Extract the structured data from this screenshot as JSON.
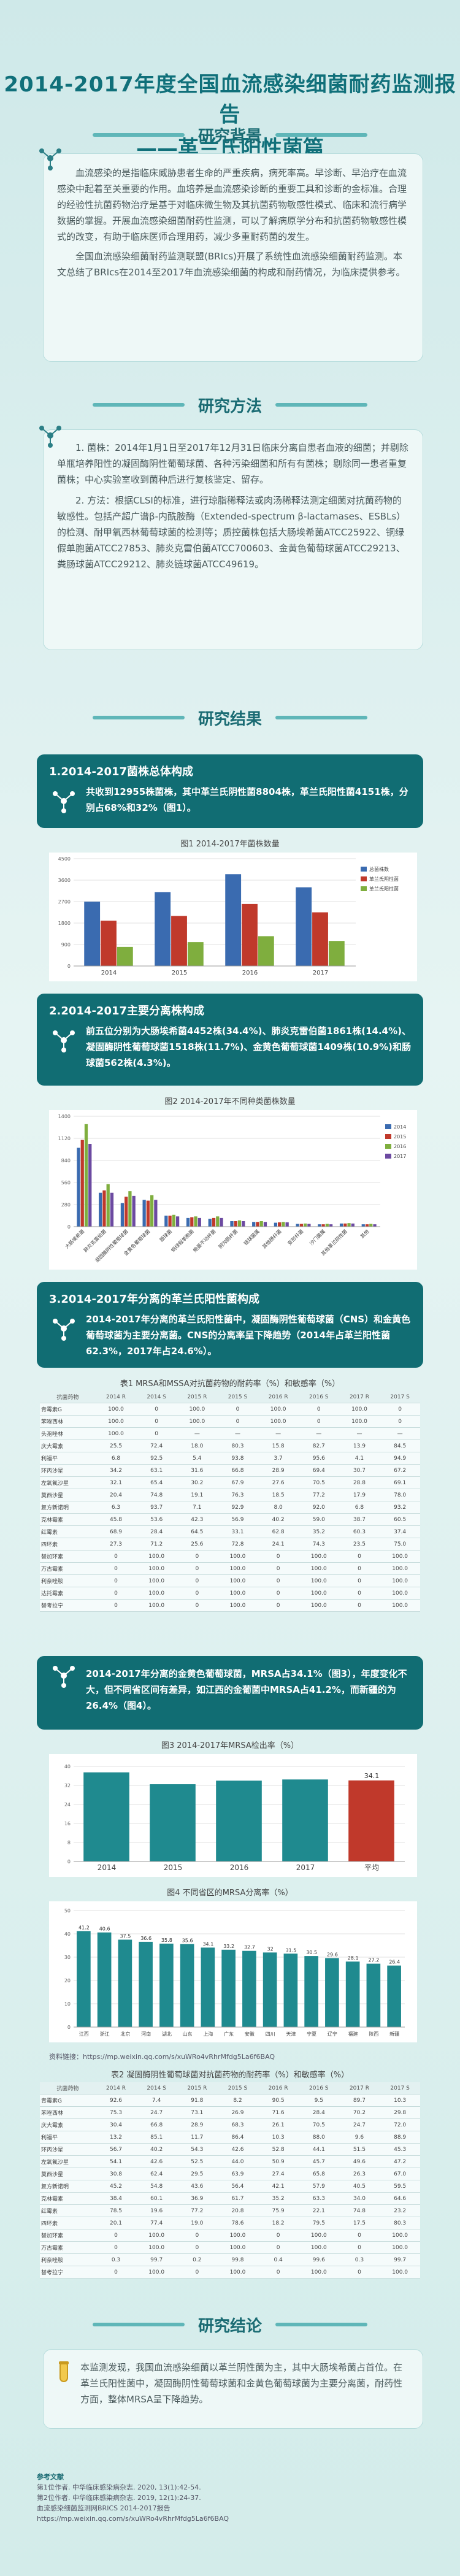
{
  "title": {
    "line1": "2014-2017年度全国血流感染细菌耐药监测报告",
    "line2": "——革兰氏阳性菌篇"
  },
  "sections": {
    "background": "研究背景",
    "methods": "研究方法",
    "results": "研究结果",
    "conclusion": "研究结论"
  },
  "background": {
    "p1": "血流感染的是指临床威胁患者生命的严重疾病，病死率高。早诊断、早治疗在血流感染中起着至关重要的作用。血培养是血流感染诊断的重要工具和诊断的金标准。合理的经验性抗菌药物治疗是基于对临床微生物及其抗菌药物敏感性模式、临床和流行病学数据的掌握。开展血流感染细菌耐药性监测，可以了解病原学分布和抗菌药物敏感性模式的改变，有助于临床医师合理用药，减少多重耐药菌的发生。",
    "p2": "全国血流感染细菌耐药监测联盟(BRIcs)开展了系统性血流感染细菌耐药监测。本文总结了BRIcs在2014至2017年血流感染细菌的构成和耐药情况，为临床提供参考。"
  },
  "methods": {
    "p1": "1. 菌株：2014年1月1日至2017年12月31日临床分离自患者血液的细菌；并剔除单瓶培养阳性的凝固酶阴性葡萄球菌、各种污染细菌和所有有菌株；剔除同一患者重复菌株；中心实验室收到菌种后进行复核鉴定、留存。",
    "p2": "2. 方法：根据CLSI的标准，进行琼脂稀释法或肉汤稀释法测定细菌对抗菌药物的敏感性。包括产超广谱β-内酰胺酶（Extended-spectrum β-lactamases、ESBLs）的检测、耐甲氧西林葡萄球菌的检测等；质控菌株包括大肠埃希菌ATCC25922、铜绿假单胞菌ATCC27853、肺炎克雷伯菌ATCC700603、金黄色葡萄球菌ATCC29213、粪肠球菌ATCC29212、肺炎链球菌ATCC49619。"
  },
  "result1": {
    "title": "1.2014-2017菌株总体构成",
    "body": "共收到12955株菌株，其中革兰氏阴性菌8804株，革兰氏阳性菌4151株，分别占68%和32%（图1）。"
  },
  "fig1": {
    "title": "图1 2014-2017年菌株数量",
    "chart_data": {
      "type": "bar",
      "categories": [
        "2014",
        "2015",
        "2016",
        "2017"
      ],
      "series": [
        {
          "name": "总菌株数",
          "values": [
            2700,
            3100,
            3850,
            3300
          ],
          "color": "#3a6bb0"
        },
        {
          "name": "革兰氏阴性菌",
          "values": [
            1900,
            2100,
            2600,
            2250
          ],
          "color": "#c0392b"
        },
        {
          "name": "革兰氏阳性菌",
          "values": [
            800,
            1000,
            1250,
            1050
          ],
          "color": "#7fae3e"
        }
      ],
      "ylim": [
        0,
        4500
      ]
    }
  },
  "result2": {
    "title": "2.2014-2017主要分离株构成",
    "body": "前五位分别为大肠埃希菌4452株(34.4%)、肺炎克雷伯菌1861株(14.4%)、凝固酶阴性葡萄球菌1518株(11.7%)、金黄色葡萄球菌1409株(10.9%)和肠球菌562株(4.3%)。"
  },
  "fig2": {
    "title": "图2 2014-2017年不同种类菌株数量",
    "chart_data": {
      "type": "bar",
      "categories": [
        "大肠埃希菌",
        "肺炎克雷伯菌",
        "凝固酶阴性葡萄球菌",
        "金黄色葡萄球菌",
        "肠球菌",
        "铜绿假单胞菌",
        "鲍曼不动杆菌",
        "阴沟肠杆菌",
        "链球菌属",
        "其他肠杆菌",
        "变形杆菌",
        "沙门菌属",
        "其他革兰阴性菌",
        "其他"
      ],
      "series": [
        {
          "name": "2014",
          "values": [
            1000,
            430,
            300,
            340,
            140,
            110,
            100,
            70,
            60,
            50,
            35,
            30,
            40,
            30
          ],
          "color": "#3a6bb0"
        },
        {
          "name": "2015",
          "values": [
            1100,
            460,
            380,
            330,
            140,
            120,
            110,
            70,
            60,
            55,
            35,
            30,
            40,
            30
          ],
          "color": "#c0392b"
        },
        {
          "name": "2016",
          "values": [
            1300,
            540,
            450,
            400,
            150,
            130,
            130,
            80,
            70,
            60,
            40,
            35,
            45,
            35
          ],
          "color": "#7fae3e"
        },
        {
          "name": "2017",
          "values": [
            1050,
            430,
            390,
            340,
            130,
            110,
            110,
            70,
            60,
            55,
            35,
            30,
            40,
            30
          ],
          "color": "#6c4aa1"
        }
      ],
      "ylim": [
        0,
        1400
      ]
    }
  },
  "result3": {
    "title": "3.2014-2017年分离的革兰氏阳性菌构成",
    "body": "2014-2017年分离的革兰氏阳性菌中，凝固酶阴性葡萄球菌（CNS）和金黄色葡萄球菌为主要分离菌。CNS的分离率呈下降趋势（2014年占革兰阳性菌62.3%，2017年占24.6%）。"
  },
  "table1": {
    "title": "表1 MRSA和MSSA对抗菌药物的耐药率（%）和敏感率（%）",
    "headers": [
      "抗菌药物",
      "2014 R",
      "2014 S",
      "2015 R",
      "2015 S",
      "2016 R",
      "2016 S",
      "2017 R",
      "2017 S"
    ],
    "rows": [
      [
        "青霉素G",
        "100.0",
        "0",
        "100.0",
        "0",
        "100.0",
        "0",
        "100.0",
        "0"
      ],
      [
        "苯唑西林",
        "100.0",
        "0",
        "100.0",
        "0",
        "100.0",
        "0",
        "100.0",
        "0"
      ],
      [
        "头孢唑林",
        "100.0",
        "0",
        "—",
        "—",
        "—",
        "—",
        "—",
        "—"
      ],
      [
        "庆大霉素",
        "25.5",
        "72.4",
        "18.0",
        "80.3",
        "15.8",
        "82.7",
        "13.9",
        "84.5"
      ],
      [
        "利福平",
        "6.8",
        "92.5",
        "5.4",
        "93.8",
        "3.7",
        "95.6",
        "4.1",
        "94.9"
      ],
      [
        "环丙沙星",
        "34.2",
        "63.1",
        "31.6",
        "66.8",
        "28.9",
        "69.4",
        "30.7",
        "67.2"
      ],
      [
        "左氧氟沙星",
        "32.1",
        "65.4",
        "30.2",
        "67.9",
        "27.6",
        "70.5",
        "28.8",
        "69.1"
      ],
      [
        "莫西沙星",
        "20.4",
        "74.8",
        "19.1",
        "76.3",
        "18.5",
        "77.2",
        "17.9",
        "78.0"
      ],
      [
        "复方新诺明",
        "6.3",
        "93.7",
        "7.1",
        "92.9",
        "8.0",
        "92.0",
        "6.8",
        "93.2"
      ],
      [
        "克林霉素",
        "45.8",
        "53.6",
        "42.3",
        "56.9",
        "40.2",
        "59.0",
        "38.7",
        "60.5"
      ],
      [
        "红霉素",
        "68.9",
        "28.4",
        "64.5",
        "33.1",
        "62.8",
        "35.2",
        "60.3",
        "37.4"
      ],
      [
        "四环素",
        "27.3",
        "71.2",
        "25.6",
        "72.8",
        "24.1",
        "74.3",
        "23.5",
        "75.0"
      ],
      [
        "替加环素",
        "0",
        "100.0",
        "0",
        "100.0",
        "0",
        "100.0",
        "0",
        "100.0"
      ],
      [
        "万古霉素",
        "0",
        "100.0",
        "0",
        "100.0",
        "0",
        "100.0",
        "0",
        "100.0"
      ],
      [
        "利奈唑胺",
        "0",
        "100.0",
        "0",
        "100.0",
        "0",
        "100.0",
        "0",
        "100.0"
      ],
      [
        "达托霉素",
        "0",
        "100.0",
        "0",
        "100.0",
        "0",
        "100.0",
        "0",
        "100.0"
      ],
      [
        "替考拉宁",
        "0",
        "100.0",
        "0",
        "100.0",
        "0",
        "100.0",
        "0",
        "100.0"
      ]
    ]
  },
  "result4": {
    "body": "2014-2017年分离的金黄色葡萄球菌，MRSA占34.1%（图3），年度变化不大，但不同省区间有差异，如江西的金葡菌中MRSA占41.2%，而新疆的为26.4%（图4）。"
  },
  "fig3": {
    "title": "图3 2014-2017年MRSA检出率（%）",
    "chart_data": {
      "type": "bar",
      "categories": [
        "2014",
        "2015",
        "2016",
        "2017",
        "平均"
      ],
      "values": [
        37.5,
        32.5,
        34.0,
        34.5,
        34.1
      ],
      "data_labels": [
        "",
        "",
        "",
        "",
        "34.1"
      ],
      "colors": [
        "#1f8a8f",
        "#1f8a8f",
        "#1f8a8f",
        "#1f8a8f",
        "#c0392b"
      ],
      "ylim": [
        0,
        40
      ]
    }
  },
  "fig4": {
    "title": "图4 不同省区的MRSA分离率（%）",
    "chart_data": {
      "type": "bar",
      "categories": [
        "江西",
        "浙江",
        "北京",
        "河南",
        "湖北",
        "山东",
        "上海",
        "广东",
        "安徽",
        "四川",
        "天津",
        "宁夏",
        "辽宁",
        "福建",
        "陕西",
        "新疆"
      ],
      "values": [
        41.2,
        40.6,
        37.5,
        36.6,
        35.8,
        35.6,
        34.1,
        33.2,
        32.7,
        32.0,
        31.5,
        30.5,
        29.6,
        28.1,
        27.2,
        26.4
      ],
      "ylim": [
        0,
        50
      ]
    }
  },
  "source1": "资料链接：https://mp.weixin.qq.com/s/xuWRo4vRhrMfdg5La6f6BAQ",
  "table2": {
    "title": "表2 凝固酶阴性葡萄球菌对抗菌药物的耐药率（%）和敏感率（%）",
    "headers": [
      "抗菌药物",
      "2014 R",
      "2014 S",
      "2015 R",
      "2015 S",
      "2016 R",
      "2016 S",
      "2017 R",
      "2017 S"
    ],
    "rows": [
      [
        "青霉素G",
        "92.6",
        "7.4",
        "91.8",
        "8.2",
        "90.5",
        "9.5",
        "89.7",
        "10.3"
      ],
      [
        "苯唑西林",
        "75.3",
        "24.7",
        "73.1",
        "26.9",
        "71.6",
        "28.4",
        "70.2",
        "29.8"
      ],
      [
        "庆大霉素",
        "30.4",
        "66.8",
        "28.9",
        "68.3",
        "26.1",
        "70.5",
        "24.7",
        "72.0"
      ],
      [
        "利福平",
        "13.2",
        "85.1",
        "11.7",
        "86.4",
        "10.3",
        "88.0",
        "9.6",
        "88.9"
      ],
      [
        "环丙沙星",
        "56.7",
        "40.2",
        "54.3",
        "42.6",
        "52.8",
        "44.1",
        "51.5",
        "45.3"
      ],
      [
        "左氧氟沙星",
        "54.1",
        "42.6",
        "52.5",
        "44.0",
        "50.9",
        "45.7",
        "49.6",
        "47.2"
      ],
      [
        "莫西沙星",
        "30.8",
        "62.4",
        "29.5",
        "63.9",
        "27.4",
        "65.8",
        "26.3",
        "67.0"
      ],
      [
        "复方新诺明",
        "45.2",
        "54.8",
        "43.6",
        "56.4",
        "42.1",
        "57.9",
        "40.5",
        "59.5"
      ],
      [
        "克林霉素",
        "38.4",
        "60.1",
        "36.9",
        "61.7",
        "35.2",
        "63.3",
        "34.0",
        "64.6"
      ],
      [
        "红霉素",
        "78.5",
        "19.6",
        "77.2",
        "20.8",
        "75.9",
        "22.1",
        "74.8",
        "23.2"
      ],
      [
        "四环素",
        "20.1",
        "77.4",
        "19.0",
        "78.6",
        "18.2",
        "79.5",
        "17.5",
        "80.3"
      ],
      [
        "替加环素",
        "0",
        "100.0",
        "0",
        "100.0",
        "0",
        "100.0",
        "0",
        "100.0"
      ],
      [
        "万古霉素",
        "0",
        "100.0",
        "0",
        "100.0",
        "0",
        "100.0",
        "0",
        "100.0"
      ],
      [
        "利奈唑胺",
        "0.3",
        "99.7",
        "0.2",
        "99.8",
        "0.4",
        "99.6",
        "0.3",
        "99.7"
      ],
      [
        "替考拉宁",
        "0",
        "100.0",
        "0",
        "100.0",
        "0",
        "100.0",
        "0",
        "100.0"
      ]
    ]
  },
  "conclusion": {
    "body": "本监测发现，我国血流感染细菌以革兰阴性菌为主，其中大肠埃希菌占首位。在革兰氏阳性菌中，凝固酶阴性葡萄球菌和金黄色葡萄球菌为主要分离菌，耐药性方面，整体MRSA呈下降趋势。"
  },
  "footer": {
    "heading": "参考文献",
    "lines": [
      "第1位作者. 中华临床感染病杂志. 2020, 13(1):42-54.",
      "第2位作者. 中华临床感染病杂志. 2019, 12(1):24-37.",
      "血流感染细菌监测网BRICS 2014-2017报告",
      "https://mp.weixin.qq.com/s/xuWRo4vRhrMfdg5La6f6BAQ"
    ]
  }
}
